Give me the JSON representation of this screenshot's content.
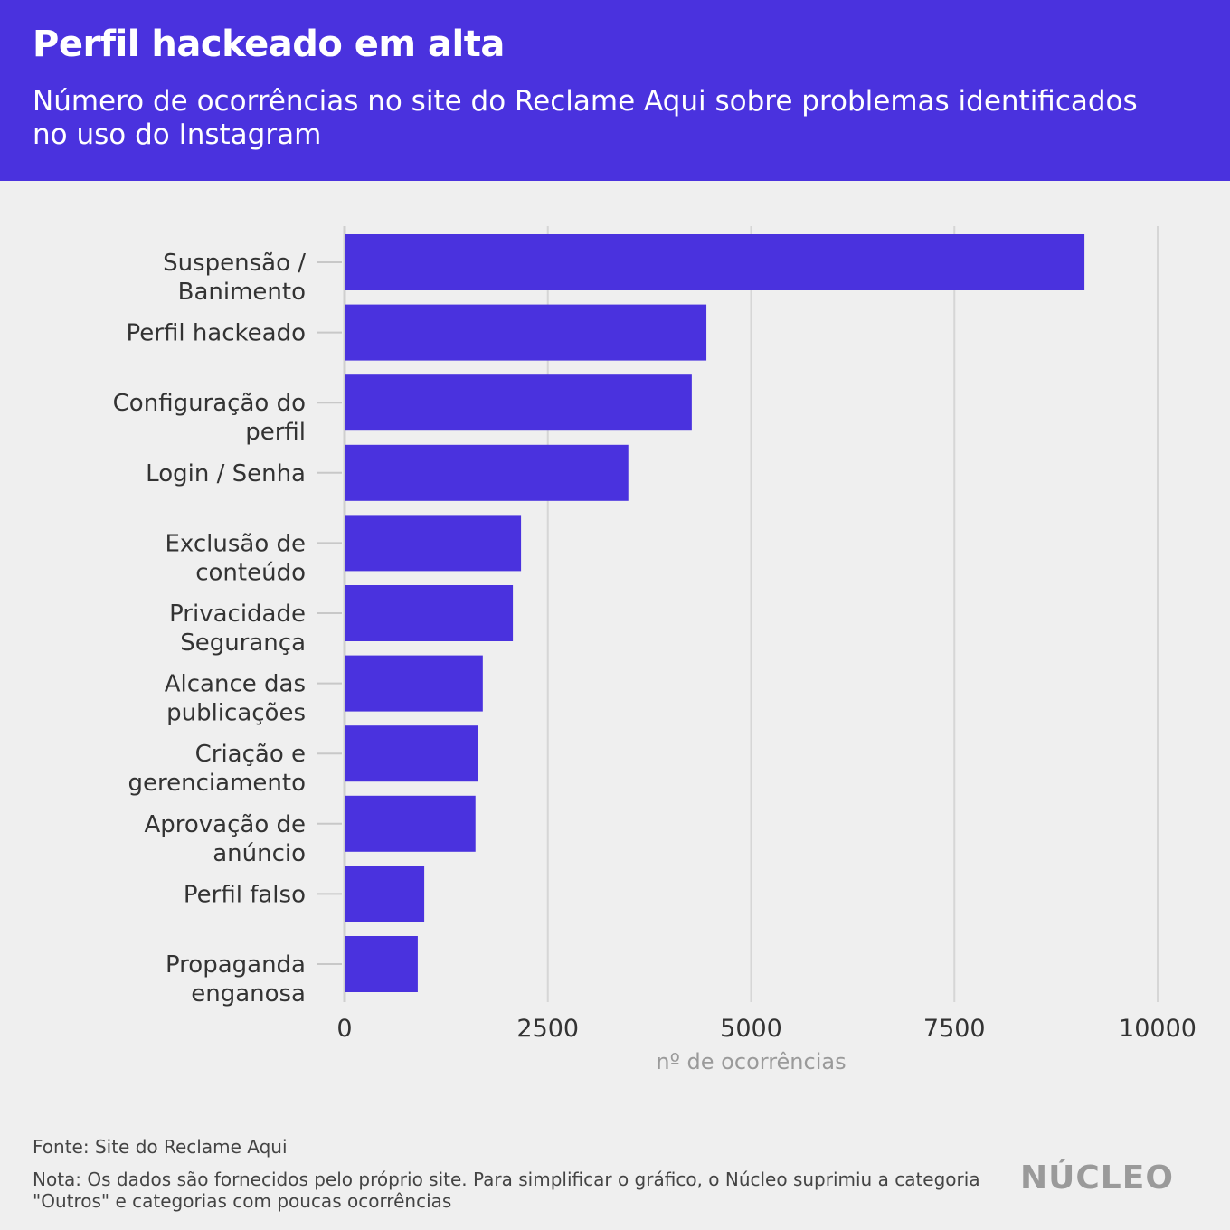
{
  "header": {
    "title": "Perfil hackeado em alta",
    "subtitle": "Número de ocorrências no site do Reclame Aqui sobre problemas identificados no uso do Instagram"
  },
  "chart_data": {
    "type": "bar",
    "orientation": "horizontal",
    "categories": [
      [
        "Suspensão /",
        "Banimento"
      ],
      [
        "Perfil hackeado"
      ],
      [
        "Configuração do",
        "perfil"
      ],
      [
        "Login / Senha"
      ],
      [
        "Exclusão de",
        "conteúdo"
      ],
      [
        "Privacidade",
        "Segurança"
      ],
      [
        "Alcance das",
        "publicações"
      ],
      [
        "Criação e",
        "gerenciamento"
      ],
      [
        "Aprovação de",
        "anúncio"
      ],
      [
        "Perfil falso"
      ],
      [
        "Propaganda",
        "enganosa"
      ]
    ],
    "values": [
      9100,
      4450,
      4270,
      3490,
      2170,
      2070,
      1700,
      1640,
      1610,
      980,
      900
    ],
    "xlabel": "nº de ocorrências",
    "xlim": [
      0,
      10000
    ],
    "xticks": [
      "0",
      "2500",
      "5000",
      "7500",
      "10000"
    ],
    "xtick_values": [
      0,
      2500,
      5000,
      7500,
      10000
    ],
    "bar_color": "#4a32de",
    "grid": "vertical"
  },
  "footer": {
    "source": "Fonte: Site do Reclame Aqui",
    "note": "Nota: Os dados são fornecidos pelo próprio site. Para simplificar o gráfico, o Núcleo suprimiu a categoria \"Outros\" e categorias com poucas ocorrências",
    "logo": "NÚCLEO"
  },
  "colors": {
    "header_bg": "#4a32de",
    "page_bg": "#efefef"
  }
}
